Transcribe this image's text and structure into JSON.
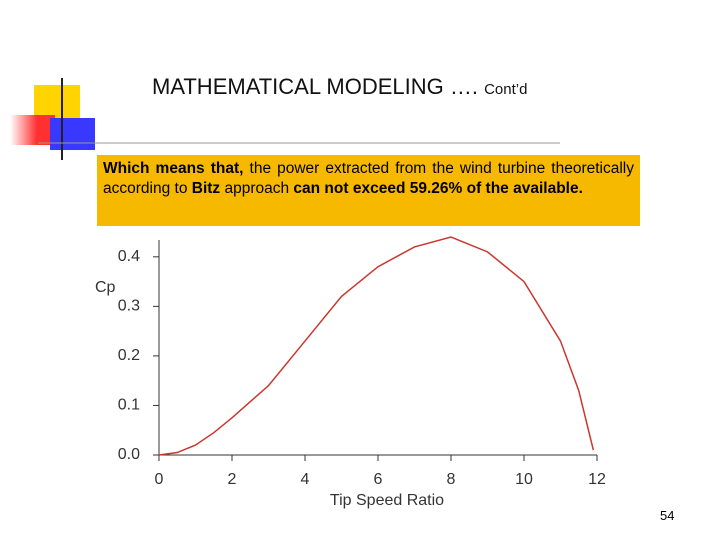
{
  "slide": {
    "title": "MATHEMATICAL MODELING ….",
    "title_suffix": "Cont’d",
    "page_number": "54",
    "callout": [
      "Which means that,",
      " the power extracted from the wind turbine theoretically according to ",
      "Bitz",
      " approach ",
      "can not exceed",
      " ",
      "59.26% of the available."
    ]
  },
  "chart_data": {
    "type": "line",
    "x_label": "Tip Speed Ratio",
    "y_label": "Cp",
    "x": [
      0,
      0.5,
      1,
      1.5,
      2,
      3,
      4,
      5,
      6,
      7,
      8,
      9,
      10,
      11,
      11.5,
      11.9
    ],
    "series": [
      {
        "name": "Cp",
        "color": "#c8372d",
        "values": [
          0,
          0.005,
          0.02,
          0.045,
          0.075,
          0.14,
          0.23,
          0.32,
          0.38,
          0.42,
          0.44,
          0.41,
          0.35,
          0.23,
          0.13,
          0.01
        ]
      }
    ],
    "xlim": [
      0,
      12
    ],
    "ylim": [
      0,
      0.44
    ],
    "xticks": [
      0,
      2,
      4,
      6,
      8,
      10,
      12
    ],
    "yticks": [
      {
        "value": 0,
        "label": "0.0"
      },
      0.1,
      0.2,
      0.3,
      0.4
    ]
  }
}
